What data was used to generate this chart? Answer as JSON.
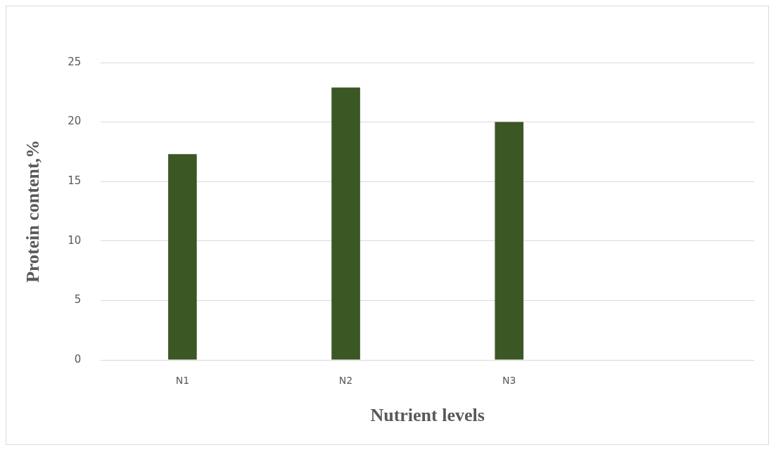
{
  "chart_data": {
    "type": "bar",
    "xlabel": "Nutrient levels",
    "ylabel": "Protein content,%",
    "categories": [
      "N1",
      "N2",
      "N3",
      null
    ],
    "values": [
      17.3,
      22.9,
      20,
      null
    ],
    "color": "#3a5724",
    "ylim": [
      0,
      25
    ],
    "yticks": [
      0,
      5,
      10,
      15,
      20,
      25
    ],
    "grid": "y",
    "legend": false
  }
}
